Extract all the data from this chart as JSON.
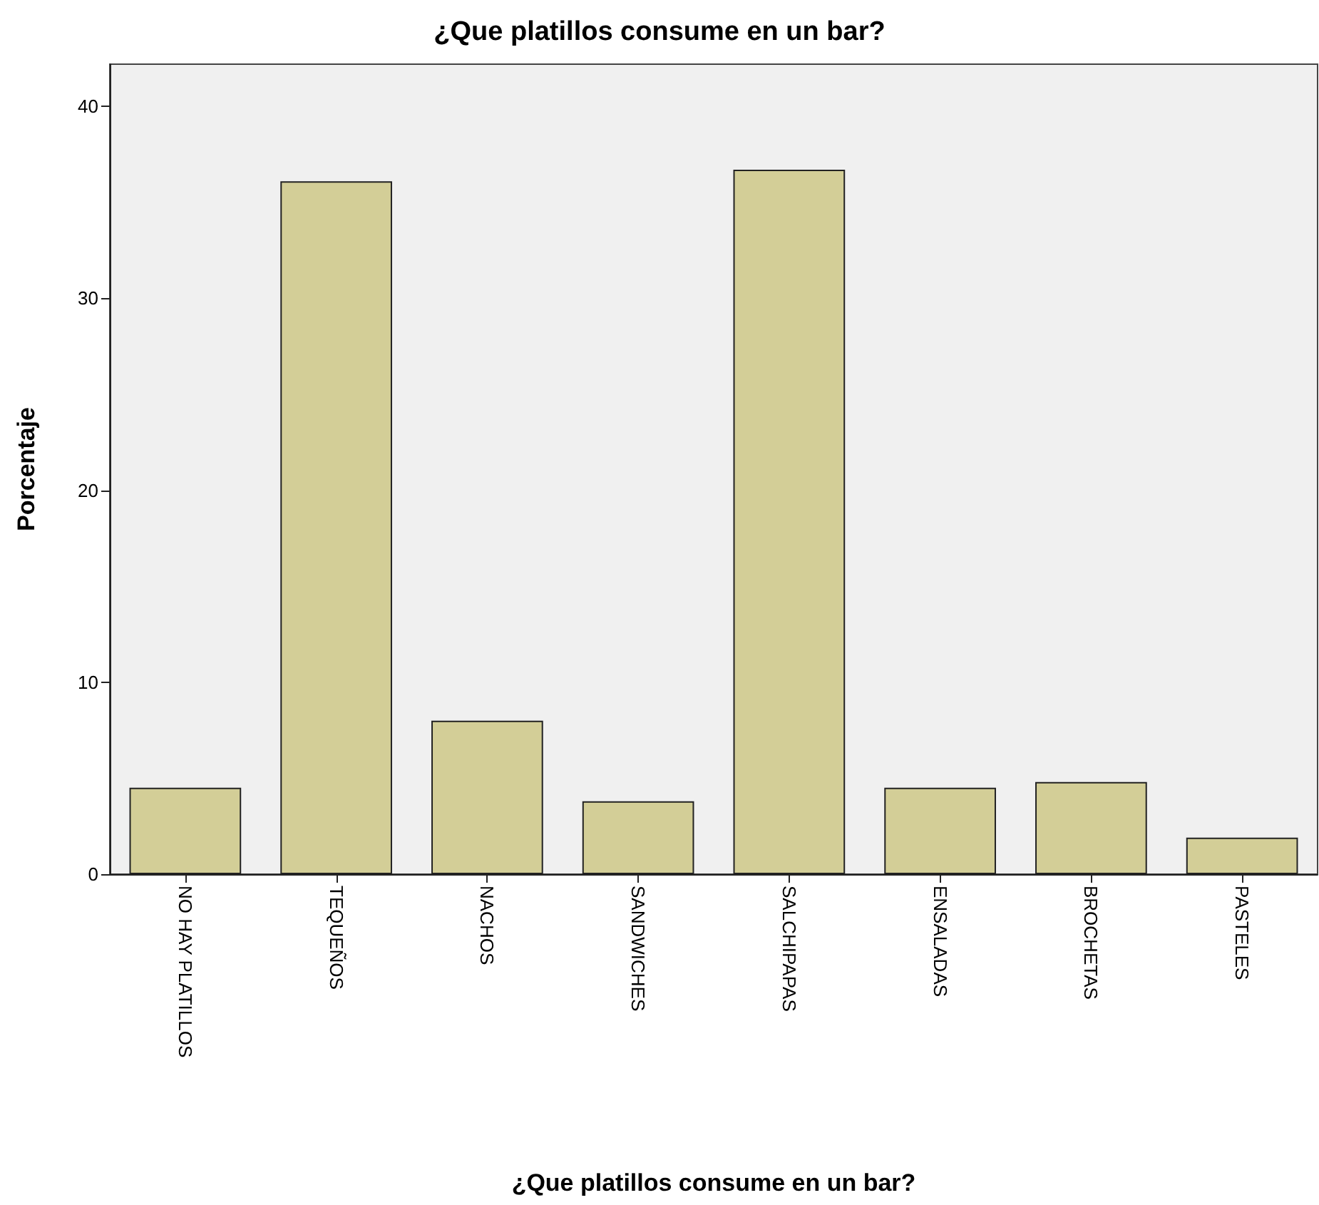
{
  "chart_data": {
    "type": "bar",
    "title": "¿Que platillos consume en un bar?",
    "xlabel": "¿Que platillos consume en un bar?",
    "ylabel": "Porcentaje",
    "categories": [
      "NO HAY PLATILLOS",
      "TEQUEÑOS",
      "NACHOS",
      "SANDWICHES",
      "SALCHIPAPAS",
      "ENSALADAS",
      "BROCHETAS",
      "PASTELES"
    ],
    "values": [
      4.5,
      36.1,
      8.0,
      3.8,
      36.7,
      4.5,
      4.8,
      1.9
    ],
    "color": "#d3ce97",
    "ylim": [
      0,
      42.2
    ],
    "yticks": [
      0,
      10,
      20,
      30,
      40
    ],
    "grid": false
  }
}
